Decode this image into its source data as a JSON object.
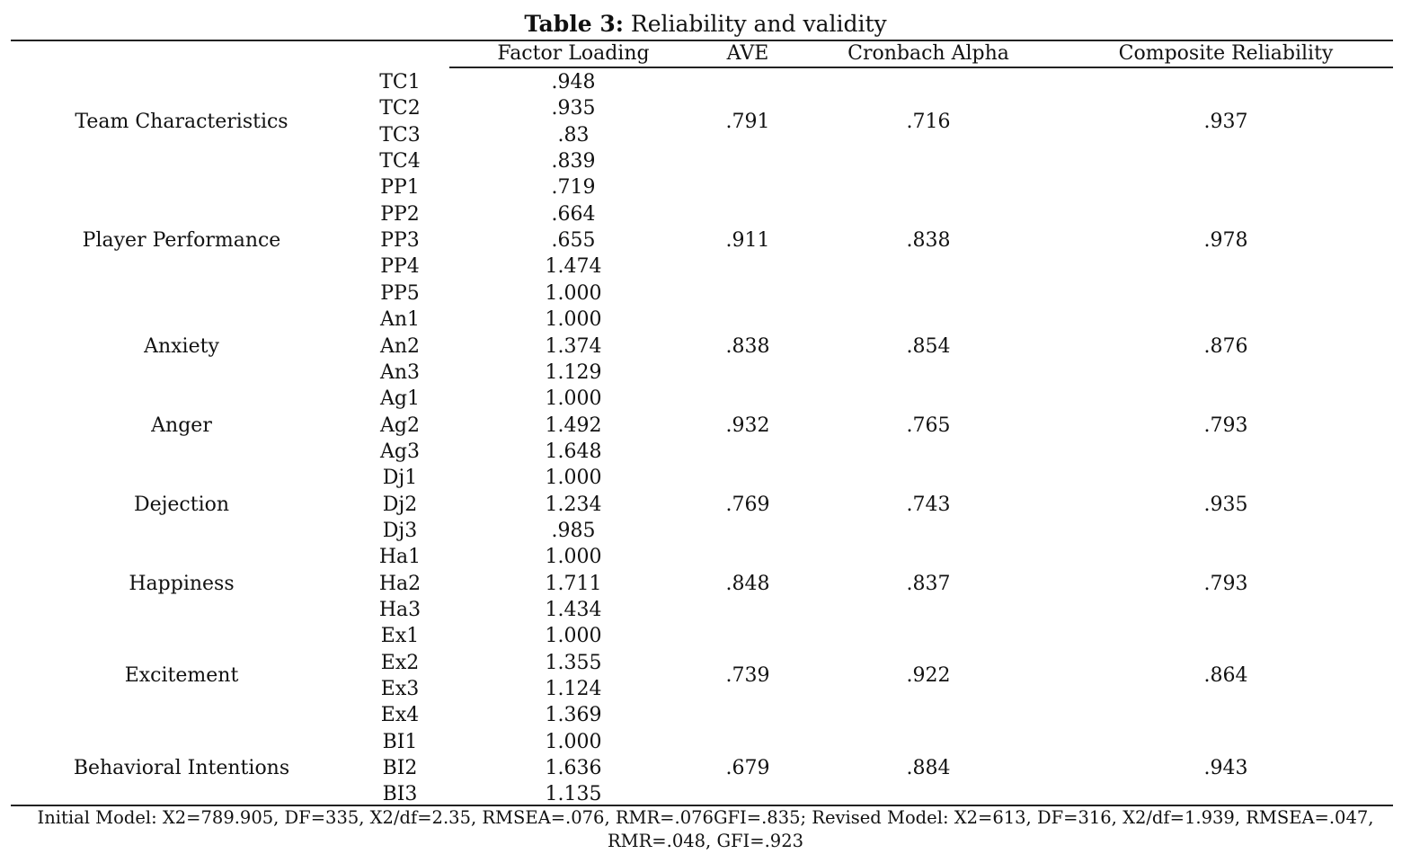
{
  "title": {
    "bold": "Table 3:",
    "text": " Reliability and validity"
  },
  "columns": [
    "Factor Loading",
    "AVE",
    "Cronbach Alpha",
    "Composite Reliability"
  ],
  "groups": [
    {
      "name": "Team Characteristics",
      "ave": ".791",
      "alpha": ".716",
      "cr": ".937",
      "items": [
        [
          "TC1",
          ".948"
        ],
        [
          "TC2",
          ".935"
        ],
        [
          "TC3",
          ".83"
        ],
        [
          "TC4",
          ".839"
        ]
      ]
    },
    {
      "name": "Player Performance",
      "ave": ".911",
      "alpha": ".838",
      "cr": ".978",
      "items": [
        [
          "PP1",
          ".719"
        ],
        [
          "PP2",
          ".664"
        ],
        [
          "PP3",
          ".655"
        ],
        [
          "PP4",
          "1.474"
        ],
        [
          "PP5",
          "1.000"
        ]
      ]
    },
    {
      "name": "Anxiety",
      "ave": ".838",
      "alpha": ".854",
      "cr": ".876",
      "items": [
        [
          "An1",
          "1.000"
        ],
        [
          "An2",
          "1.374"
        ],
        [
          "An3",
          "1.129"
        ]
      ]
    },
    {
      "name": "Anger",
      "ave": ".932",
      "alpha": ".765",
      "cr": ".793",
      "items": [
        [
          "Ag1",
          "1.000"
        ],
        [
          "Ag2",
          "1.492"
        ],
        [
          "Ag3",
          "1.648"
        ]
      ]
    },
    {
      "name": "Dejection",
      "ave": ".769",
      "alpha": ".743",
      "cr": ".935",
      "items": [
        [
          "Dj1",
          "1.000"
        ],
        [
          "Dj2",
          "1.234"
        ],
        [
          "Dj3",
          ".985"
        ]
      ]
    },
    {
      "name": "Happiness",
      "ave": ".848",
      "alpha": ".837",
      "cr": ".793",
      "items": [
        [
          "Ha1",
          "1.000"
        ],
        [
          "Ha2",
          "1.711"
        ],
        [
          "Ha3",
          "1.434"
        ]
      ]
    },
    {
      "name": "Excitement",
      "ave": ".739",
      "alpha": ".922",
      "cr": ".864",
      "items": [
        [
          "Ex1",
          "1.000"
        ],
        [
          "Ex2",
          "1.355"
        ],
        [
          "Ex3",
          "1.124"
        ],
        [
          "Ex4",
          "1.369"
        ]
      ]
    },
    {
      "name": "Behavioral Intentions",
      "ave": ".679",
      "alpha": ".884",
      "cr": ".943",
      "items": [
        [
          "BI1",
          "1.000"
        ],
        [
          "BI2",
          "1.636"
        ],
        [
          "BI3",
          "1.135"
        ]
      ]
    }
  ],
  "footer": "Initial Model: X2=789.905, DF=335, X2/df=2.35, RMSEA=.076, RMR=.076GFI=.835; Revised Model: X2=613, DF=316, X2/df=1.939, RMSEA=.047, RMR=.048, GFI=.923"
}
